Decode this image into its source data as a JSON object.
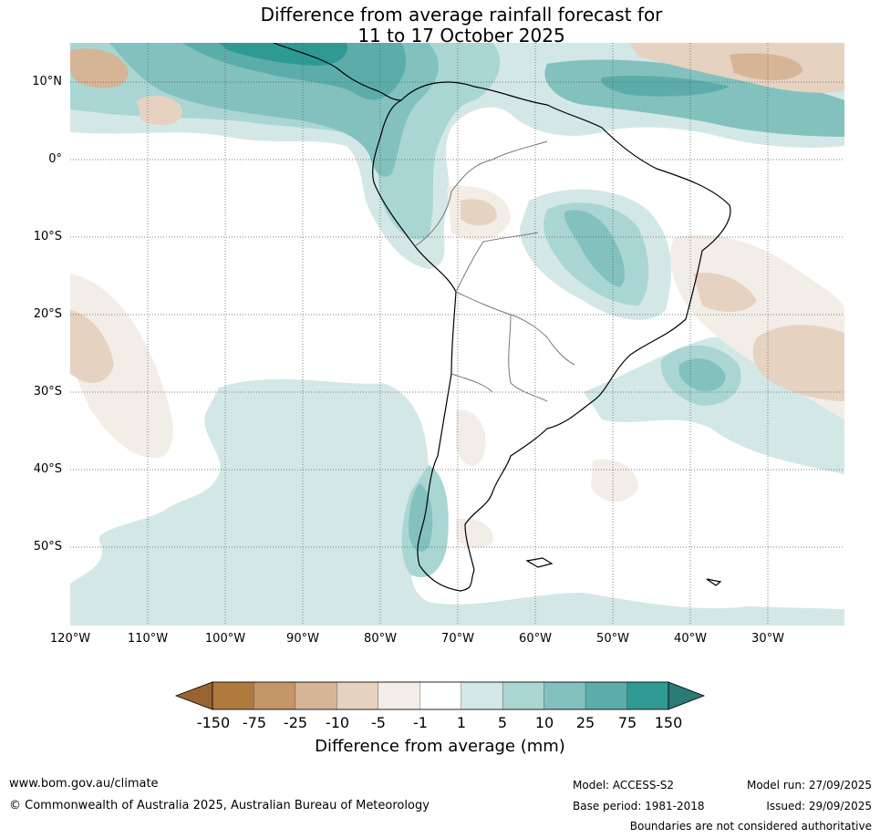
{
  "map": {
    "title_line1": "Difference from average rainfall forecast for",
    "title_line2": "11 to 17 October 2025",
    "lat_labels": [
      "10°N",
      "0°",
      "10°S",
      "20°S",
      "30°S",
      "40°S",
      "50°S"
    ],
    "lon_labels": [
      "120°W",
      "110°W",
      "100°W",
      "90°W",
      "80°W",
      "70°W",
      "60°W",
      "50°W",
      "40°W",
      "30°W"
    ],
    "extent": {
      "lon_min": -120,
      "lon_max": -20,
      "lat_min": -60,
      "lat_max": 15
    }
  },
  "colorbar": {
    "label": "Difference from average (mm)",
    "ticks": [
      "-150",
      "-75",
      "-25",
      "-10",
      "-5",
      "-1",
      "1",
      "5",
      "10",
      "25",
      "75",
      "150"
    ],
    "colors": {
      "below_min": "#9a6432",
      "bins": [
        "#b07a3e",
        "#c49668",
        "#d6b596",
        "#e6d2c0",
        "#f3ede7",
        "#ffffff",
        "#d3e8e6",
        "#a9d6d3",
        "#82c1be",
        "#5cadaa",
        "#2f9994"
      ],
      "above_max": "#2a7a76"
    }
  },
  "footer": {
    "website": "www.bom.gov.au/climate",
    "copyright": "© Commonwealth of Australia 2025, Australian Bureau of Meteorology",
    "model": "Model: ACCESS-S2",
    "base_period": "Base period: 1981-2018",
    "model_run": "Model run: 27/09/2025",
    "issued": "Issued: 29/09/2025",
    "disclaimer": "Boundaries are not considered authoritative"
  }
}
